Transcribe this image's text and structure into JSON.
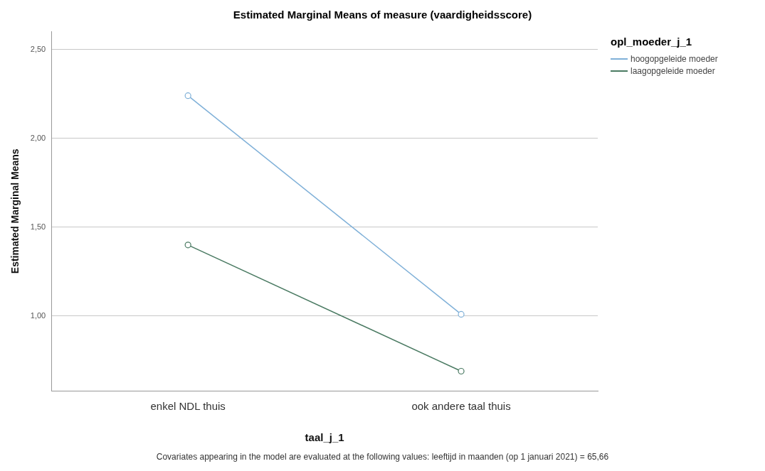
{
  "chart_data": {
    "type": "line",
    "title": "Estimated Marginal Means of measure (vaardigheidsscore)",
    "xlabel": "taal_j_1",
    "ylabel": "Estimated Marginal Means",
    "legend_title": "opl_moeder_j_1",
    "categories": [
      "enkel NDL thuis",
      "ook andere taal thuis"
    ],
    "series": [
      {
        "name": "hoogopgeleide moeder",
        "color": "#7fb0d8",
        "values": [
          2.24,
          1.01
        ]
      },
      {
        "name": "laagopgeleide moeder",
        "color": "#4a7a62",
        "values": [
          1.4,
          0.69
        ]
      }
    ],
    "ylim": [
      0.58,
      2.6
    ],
    "yticks": [
      {
        "value": 1,
        "label": "1,00"
      },
      {
        "value": 1.5,
        "label": "1,50"
      },
      {
        "value": 2,
        "label": "2,00"
      },
      {
        "value": 2.5,
        "label": "2,50"
      }
    ],
    "grid": "y",
    "legend": "top right",
    "marker": "circle",
    "line_style": "solid",
    "annotations": [
      "Covariates appearing in the model are evaluated at the following values: leeftijd in maanden (op 1 januari 2021) = 65,66"
    ]
  }
}
